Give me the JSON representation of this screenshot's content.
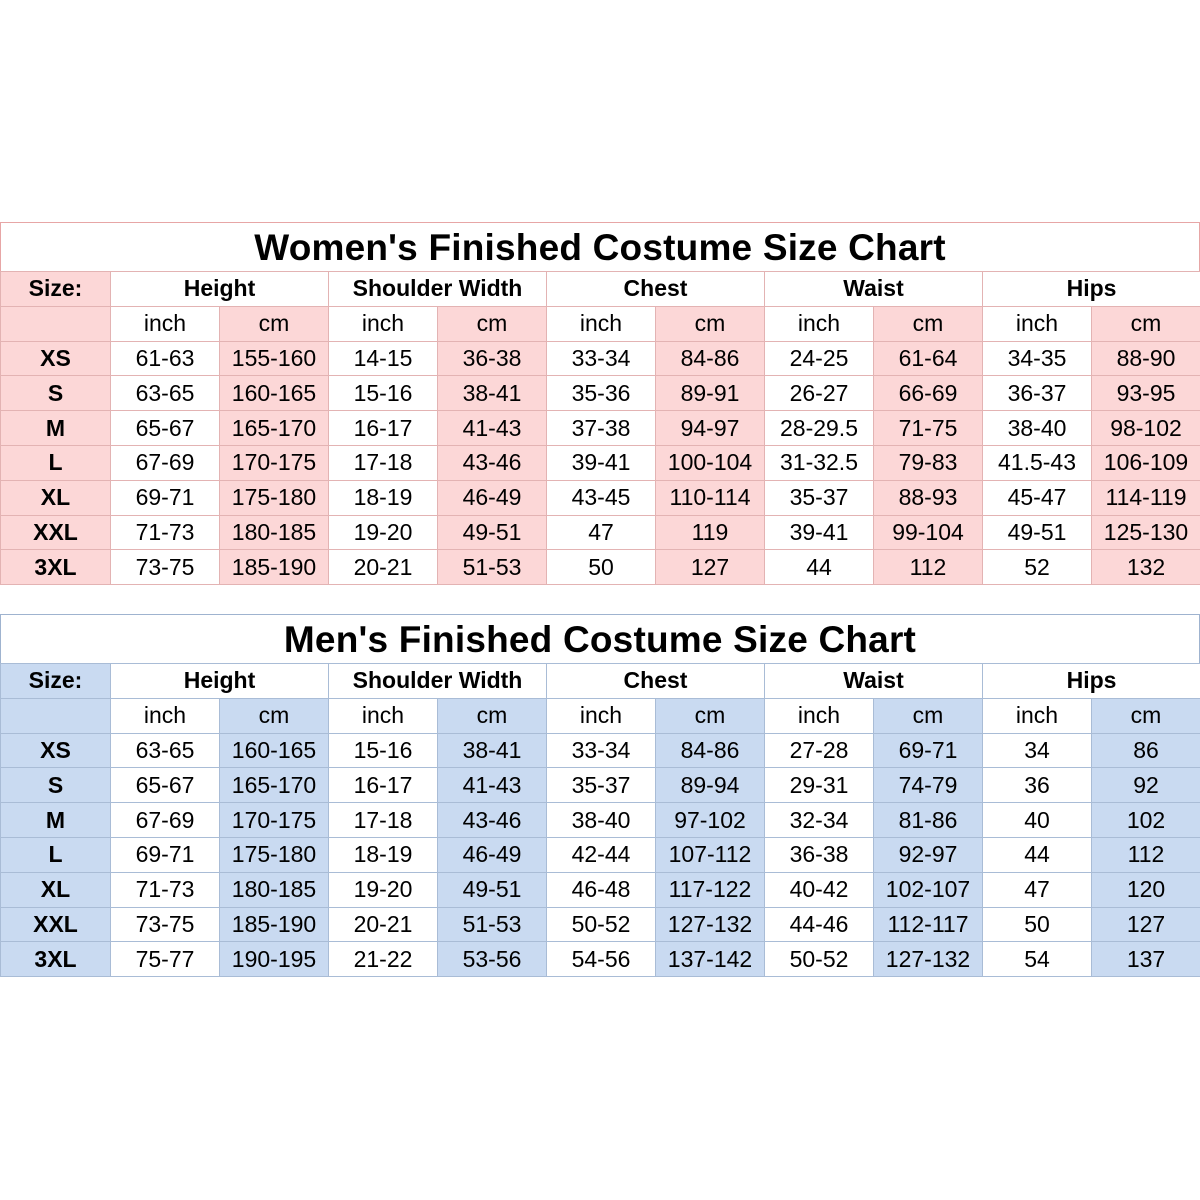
{
  "charts": [
    {
      "id": "women",
      "title": "Women's Finished Costume Size Chart",
      "accent": "#fcd7d7",
      "size_label": "Size:",
      "groups": [
        "Height",
        "Shoulder Width",
        "Chest",
        "Waist",
        "Hips"
      ],
      "unit_labels": [
        "inch",
        "cm"
      ],
      "rows": [
        {
          "size": "XS",
          "values": [
            "61-63",
            "155-160",
            "14-15",
            "36-38",
            "33-34",
            "84-86",
            "24-25",
            "61-64",
            "34-35",
            "88-90"
          ]
        },
        {
          "size": "S",
          "values": [
            "63-65",
            "160-165",
            "15-16",
            "38-41",
            "35-36",
            "89-91",
            "26-27",
            "66-69",
            "36-37",
            "93-95"
          ]
        },
        {
          "size": "M",
          "values": [
            "65-67",
            "165-170",
            "16-17",
            "41-43",
            "37-38",
            "94-97",
            "28-29.5",
            "71-75",
            "38-40",
            "98-102"
          ]
        },
        {
          "size": "L",
          "values": [
            "67-69",
            "170-175",
            "17-18",
            "43-46",
            "39-41",
            "100-104",
            "31-32.5",
            "79-83",
            "41.5-43",
            "106-109"
          ]
        },
        {
          "size": "XL",
          "values": [
            "69-71",
            "175-180",
            "18-19",
            "46-49",
            "43-45",
            "110-114",
            "35-37",
            "88-93",
            "45-47",
            "114-119"
          ]
        },
        {
          "size": "XXL",
          "values": [
            "71-73",
            "180-185",
            "19-20",
            "49-51",
            "47",
            "119",
            "39-41",
            "99-104",
            "49-51",
            "125-130"
          ]
        },
        {
          "size": "3XL",
          "values": [
            "73-75",
            "185-190",
            "20-21",
            "51-53",
            "50",
            "127",
            "44",
            "112",
            "52",
            "132"
          ]
        }
      ]
    },
    {
      "id": "men",
      "title": "Men's Finished Costume Size Chart",
      "accent": "#c9daf1",
      "size_label": "Size:",
      "groups": [
        "Height",
        "Shoulder Width",
        "Chest",
        "Waist",
        "Hips"
      ],
      "unit_labels": [
        "inch",
        "cm"
      ],
      "rows": [
        {
          "size": "XS",
          "values": [
            "63-65",
            "160-165",
            "15-16",
            "38-41",
            "33-34",
            "84-86",
            "27-28",
            "69-71",
            "34",
            "86"
          ]
        },
        {
          "size": "S",
          "values": [
            "65-67",
            "165-170",
            "16-17",
            "41-43",
            "35-37",
            "89-94",
            "29-31",
            "74-79",
            "36",
            "92"
          ]
        },
        {
          "size": "M",
          "values": [
            "67-69",
            "170-175",
            "17-18",
            "43-46",
            "38-40",
            "97-102",
            "32-34",
            "81-86",
            "40",
            "102"
          ]
        },
        {
          "size": "L",
          "values": [
            "69-71",
            "175-180",
            "18-19",
            "46-49",
            "42-44",
            "107-112",
            "36-38",
            "92-97",
            "44",
            "112"
          ]
        },
        {
          "size": "XL",
          "values": [
            "71-73",
            "180-185",
            "19-20",
            "49-51",
            "46-48",
            "117-122",
            "40-42",
            "102-107",
            "47",
            "120"
          ]
        },
        {
          "size": "XXL",
          "values": [
            "73-75",
            "185-190",
            "20-21",
            "51-53",
            "50-52",
            "127-132",
            "44-46",
            "112-117",
            "50",
            "127"
          ]
        },
        {
          "size": "3XL",
          "values": [
            "75-77",
            "190-195",
            "21-22",
            "53-56",
            "54-56",
            "137-142",
            "50-52",
            "127-132",
            "54",
            "137"
          ]
        }
      ]
    }
  ]
}
